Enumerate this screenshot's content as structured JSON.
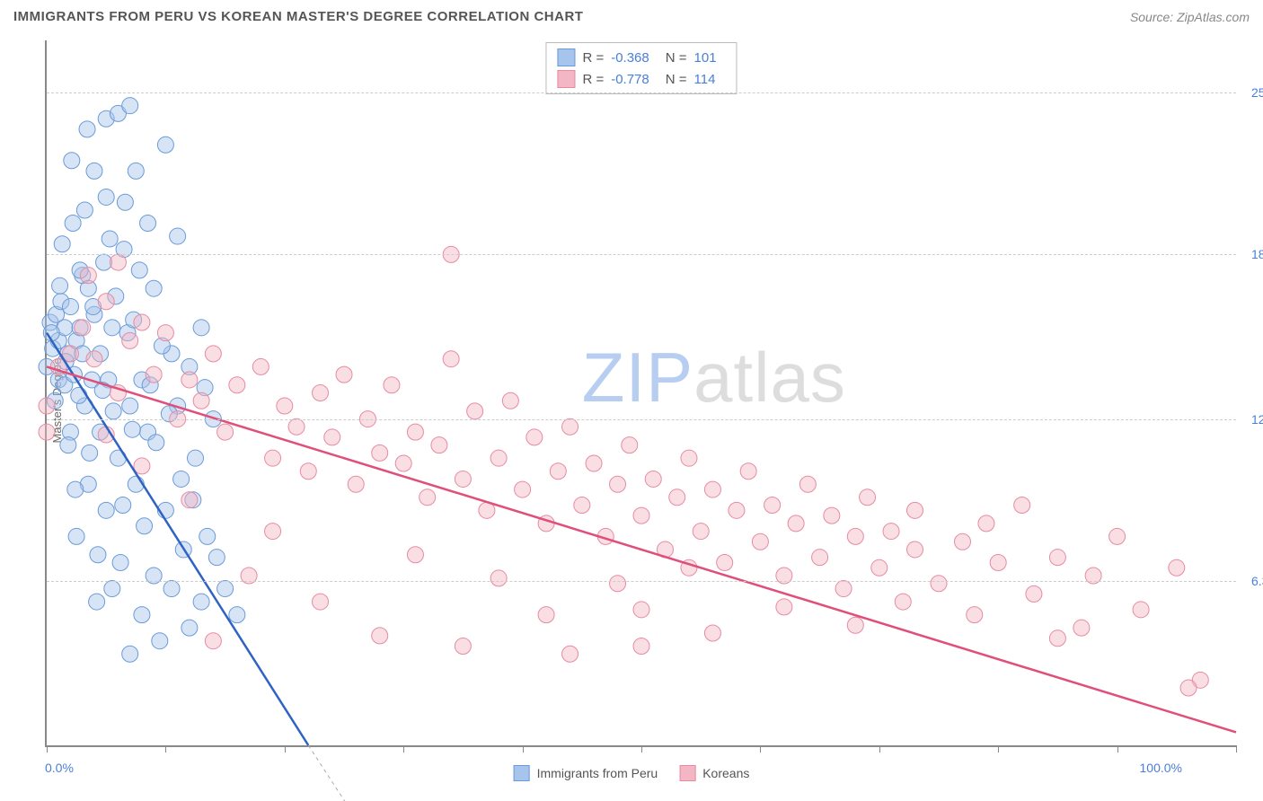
{
  "header": {
    "title": "IMMIGRANTS FROM PERU VS KOREAN MASTER'S DEGREE CORRELATION CHART",
    "source_prefix": "Source: ",
    "source_name": "ZipAtlas.com"
  },
  "chart": {
    "type": "scatter",
    "ylabel": "Master's Degree",
    "xlim": [
      0,
      100
    ],
    "ylim": [
      0,
      27
    ],
    "x_tick_positions": [
      0,
      10,
      20,
      30,
      40,
      50,
      60,
      70,
      80,
      90,
      100
    ],
    "y_gridlines": [
      6.3,
      12.5,
      18.8,
      25.0
    ],
    "y_tick_labels": [
      "6.3%",
      "12.5%",
      "18.8%",
      "25.0%"
    ],
    "x_min_label": "0.0%",
    "x_max_label": "100.0%",
    "background_color": "#ffffff",
    "grid_color": "#cccccc",
    "axis_color": "#888888",
    "marker_radius": 9,
    "marker_opacity": 0.45,
    "line_width": 2.5
  },
  "series": [
    {
      "name": "Immigrants from Peru",
      "fill_color": "#a7c4ec",
      "stroke_color": "#6a9bd8",
      "line_color": "#2e63c4",
      "r_label": "R =",
      "r_value": "-0.368",
      "n_label": "N =",
      "n_value": "101",
      "trend": {
        "x1": 0,
        "y1": 15.8,
        "x2": 22,
        "y2": 0
      },
      "trend_dashed_extension": {
        "x1": 22,
        "y1": 0,
        "x2": 27,
        "y2": -3.5
      },
      "points": [
        [
          0,
          14.5
        ],
        [
          0.3,
          16.2
        ],
        [
          0.5,
          15.2
        ],
        [
          0.8,
          16.5
        ],
        [
          1,
          14
        ],
        [
          1,
          15.5
        ],
        [
          1.2,
          17
        ],
        [
          1.5,
          16
        ],
        [
          1.5,
          13.8
        ],
        [
          1.8,
          15
        ],
        [
          2,
          16.8
        ],
        [
          2,
          12
        ],
        [
          2.2,
          20
        ],
        [
          2.3,
          14.2
        ],
        [
          2.5,
          15.5
        ],
        [
          2.5,
          8
        ],
        [
          2.8,
          16
        ],
        [
          3,
          15
        ],
        [
          3,
          18
        ],
        [
          3.2,
          13
        ],
        [
          3.5,
          17.5
        ],
        [
          3.5,
          10
        ],
        [
          3.8,
          14
        ],
        [
          4,
          22
        ],
        [
          4,
          16.5
        ],
        [
          4.2,
          5.5
        ],
        [
          4.5,
          12
        ],
        [
          4.5,
          15
        ],
        [
          5,
          24
        ],
        [
          5,
          9
        ],
        [
          5,
          21
        ],
        [
          5.2,
          14
        ],
        [
          5.5,
          6
        ],
        [
          5.5,
          16
        ],
        [
          6,
          11
        ],
        [
          6,
          24.2
        ],
        [
          6.2,
          7
        ],
        [
          6.5,
          19
        ],
        [
          7,
          24.5
        ],
        [
          7,
          13
        ],
        [
          7,
          3.5
        ],
        [
          7.5,
          10
        ],
        [
          7.5,
          22
        ],
        [
          8,
          5
        ],
        [
          8,
          14
        ],
        [
          8.5,
          12
        ],
        [
          8.5,
          20
        ],
        [
          9,
          6.5
        ],
        [
          9,
          17.5
        ],
        [
          9.5,
          4
        ],
        [
          10,
          23
        ],
        [
          10,
          9
        ],
        [
          10.5,
          15
        ],
        [
          10.5,
          6
        ],
        [
          11,
          13
        ],
        [
          11,
          19.5
        ],
        [
          11.5,
          7.5
        ],
        [
          12,
          14.5
        ],
        [
          12,
          4.5
        ],
        [
          12.5,
          11
        ],
        [
          13,
          5.5
        ],
        [
          13,
          16
        ],
        [
          13.5,
          8
        ],
        [
          14,
          12.5
        ],
        [
          2.8,
          18.2
        ],
        [
          3.2,
          20.5
        ],
        [
          1.3,
          19.2
        ],
        [
          4.8,
          18.5
        ],
        [
          5.8,
          17.2
        ],
        [
          6.8,
          15.8
        ],
        [
          0.7,
          13.2
        ],
        [
          1.8,
          11.5
        ],
        [
          2.4,
          9.8
        ],
        [
          3.6,
          11.2
        ],
        [
          4.3,
          7.3
        ],
        [
          5.6,
          12.8
        ],
        [
          6.4,
          9.2
        ],
        [
          7.3,
          16.3
        ],
        [
          8.2,
          8.4
        ],
        [
          9.2,
          11.6
        ],
        [
          1.6,
          14.7
        ],
        [
          2.7,
          13.4
        ],
        [
          3.9,
          16.8
        ],
        [
          4.7,
          13.6
        ],
        [
          0.4,
          15.8
        ],
        [
          1.1,
          17.6
        ],
        [
          5.3,
          19.4
        ],
        [
          6.6,
          20.8
        ],
        [
          7.8,
          18.2
        ],
        [
          2.1,
          22.4
        ],
        [
          3.4,
          23.6
        ],
        [
          10.3,
          12.7
        ],
        [
          11.3,
          10.2
        ],
        [
          12.3,
          9.4
        ],
        [
          13.3,
          13.7
        ],
        [
          14.3,
          7.2
        ],
        [
          9.7,
          15.3
        ],
        [
          8.7,
          13.8
        ],
        [
          7.2,
          12.1
        ],
        [
          15,
          6
        ],
        [
          16,
          5
        ]
      ]
    },
    {
      "name": "Koreans",
      "fill_color": "#f2b6c4",
      "stroke_color": "#e78ba1",
      "line_color": "#e04e7a",
      "r_label": "R =",
      "r_value": "-0.778",
      "n_label": "N =",
      "n_value": "114",
      "trend": {
        "x1": 0,
        "y1": 14.5,
        "x2": 100,
        "y2": 0.5
      },
      "points": [
        [
          0,
          13
        ],
        [
          1,
          14.5
        ],
        [
          2,
          15
        ],
        [
          3,
          16
        ],
        [
          4,
          14.8
        ],
        [
          5,
          17
        ],
        [
          6,
          13.5
        ],
        [
          7,
          15.5
        ],
        [
          8,
          16.2
        ],
        [
          9,
          14.2
        ],
        [
          10,
          15.8
        ],
        [
          11,
          12.5
        ],
        [
          12,
          14
        ],
        [
          13,
          13.2
        ],
        [
          14,
          15
        ],
        [
          15,
          12
        ],
        [
          16,
          13.8
        ],
        [
          18,
          14.5
        ],
        [
          19,
          11
        ],
        [
          20,
          13
        ],
        [
          21,
          12.2
        ],
        [
          22,
          10.5
        ],
        [
          23,
          13.5
        ],
        [
          24,
          11.8
        ],
        [
          25,
          14.2
        ],
        [
          26,
          10
        ],
        [
          27,
          12.5
        ],
        [
          28,
          11.2
        ],
        [
          29,
          13.8
        ],
        [
          30,
          10.8
        ],
        [
          31,
          12
        ],
        [
          32,
          9.5
        ],
        [
          33,
          11.5
        ],
        [
          34,
          14.8
        ],
        [
          35,
          10.2
        ],
        [
          36,
          12.8
        ],
        [
          37,
          9
        ],
        [
          38,
          11
        ],
        [
          39,
          13.2
        ],
        [
          40,
          9.8
        ],
        [
          41,
          11.8
        ],
        [
          42,
          8.5
        ],
        [
          43,
          10.5
        ],
        [
          44,
          12.2
        ],
        [
          45,
          9.2
        ],
        [
          46,
          10.8
        ],
        [
          47,
          8
        ],
        [
          48,
          10
        ],
        [
          49,
          11.5
        ],
        [
          50,
          8.8
        ],
        [
          51,
          10.2
        ],
        [
          52,
          7.5
        ],
        [
          53,
          9.5
        ],
        [
          54,
          11
        ],
        [
          55,
          8.2
        ],
        [
          56,
          9.8
        ],
        [
          57,
          7
        ],
        [
          58,
          9
        ],
        [
          59,
          10.5
        ],
        [
          60,
          7.8
        ],
        [
          61,
          9.2
        ],
        [
          62,
          6.5
        ],
        [
          63,
          8.5
        ],
        [
          64,
          10
        ],
        [
          65,
          7.2
        ],
        [
          66,
          8.8
        ],
        [
          67,
          6
        ],
        [
          68,
          8
        ],
        [
          69,
          9.5
        ],
        [
          70,
          6.8
        ],
        [
          71,
          8.2
        ],
        [
          72,
          5.5
        ],
        [
          73,
          7.5
        ],
        [
          75,
          6.2
        ],
        [
          77,
          7.8
        ],
        [
          78,
          5
        ],
        [
          80,
          7
        ],
        [
          82,
          9.2
        ],
        [
          83,
          5.8
        ],
        [
          85,
          7.2
        ],
        [
          87,
          4.5
        ],
        [
          88,
          6.5
        ],
        [
          90,
          8
        ],
        [
          92,
          5.2
        ],
        [
          95,
          6.8
        ],
        [
          97,
          2.5
        ],
        [
          3.5,
          18
        ],
        [
          34,
          18.8
        ],
        [
          6,
          18.5
        ],
        [
          0,
          12
        ],
        [
          14,
          4
        ],
        [
          28,
          4.2
        ],
        [
          35,
          3.8
        ],
        [
          42,
          5
        ],
        [
          50,
          5.2
        ],
        [
          56,
          4.3
        ],
        [
          62,
          5.3
        ],
        [
          68,
          4.6
        ],
        [
          23,
          5.5
        ],
        [
          17,
          6.5
        ],
        [
          48,
          6.2
        ],
        [
          54,
          6.8
        ],
        [
          73,
          9
        ],
        [
          79,
          8.5
        ],
        [
          44,
          3.5
        ],
        [
          50,
          3.8
        ],
        [
          38,
          6.4
        ],
        [
          31,
          7.3
        ],
        [
          19,
          8.2
        ],
        [
          12,
          9.4
        ],
        [
          8,
          10.7
        ],
        [
          5,
          11.9
        ],
        [
          96,
          2.2
        ],
        [
          85,
          4.1
        ]
      ]
    }
  ],
  "bottom_legend": {
    "items": [
      {
        "label": "Immigrants from Peru",
        "series_idx": 0
      },
      {
        "label": "Koreans",
        "series_idx": 1
      }
    ]
  },
  "watermark": {
    "part1": "ZIP",
    "part2": "atlas"
  }
}
